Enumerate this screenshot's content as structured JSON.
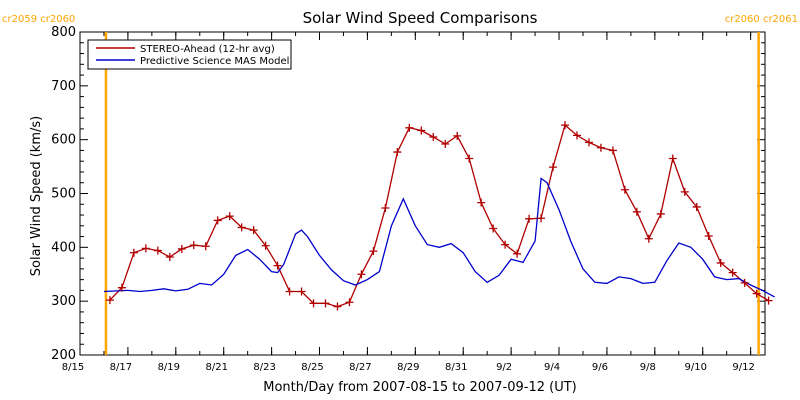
{
  "chart_data": {
    "type": "line",
    "title": "Solar Wind Speed Comparisons",
    "xlabel": "Month/Day from 2007-08-15 to 2007-09-12 (UT)",
    "ylabel": "Solar Wind Speed (km/s)",
    "xlim": [
      "2007-08-15",
      "2007-09-12"
    ],
    "ylim": [
      200,
      800
    ],
    "x_ticks": [
      {
        "date": "2007-08-15",
        "label": "8/15"
      },
      {
        "date": "2007-08-17",
        "label": "8/17"
      },
      {
        "date": "2007-08-19",
        "label": "8/19"
      },
      {
        "date": "2007-08-21",
        "label": "8/21"
      },
      {
        "date": "2007-08-23",
        "label": "8/23"
      },
      {
        "date": "2007-08-25",
        "label": "8/25"
      },
      {
        "date": "2007-08-27",
        "label": "8/27"
      },
      {
        "date": "2007-08-29",
        "label": "8/29"
      },
      {
        "date": "2007-08-31",
        "label": "8/31"
      },
      {
        "date": "2007-09-02",
        "label": "9/2"
      },
      {
        "date": "2007-09-04",
        "label": "9/4"
      },
      {
        "date": "2007-09-06",
        "label": "9/6"
      },
      {
        "date": "2007-09-08",
        "label": "9/8"
      },
      {
        "date": "2007-09-10",
        "label": "9/10"
      },
      {
        "date": "2007-09-12",
        "label": "9/12"
      }
    ],
    "y_ticks": [
      200,
      300,
      400,
      500,
      600,
      700,
      800
    ],
    "legend": {
      "position": "top-left",
      "entries": [
        "STEREO-Ahead (12-hr avg)",
        "Predictive Science MAS Model"
      ]
    },
    "markers": [
      {
        "date": "2007-08-16 02:00",
        "label": "cr2059 cr2060",
        "color": "#ffa500",
        "position": "left"
      },
      {
        "date": "2007-09-12 08:00",
        "label": "cr2060 cr2061",
        "color": "#ffa500",
        "position": "right"
      }
    ],
    "series": [
      {
        "name": "STEREO-Ahead (12-hr avg)",
        "color": "#b00000",
        "marker": "+",
        "points": [
          [
            "2007-08-16 06:00",
            302
          ],
          [
            "2007-08-16 18:00",
            325
          ],
          [
            "2007-08-17 06:00",
            390
          ],
          [
            "2007-08-17 18:00",
            398
          ],
          [
            "2007-08-18 06:00",
            394
          ],
          [
            "2007-08-18 18:00",
            382
          ],
          [
            "2007-08-19 06:00",
            397
          ],
          [
            "2007-08-19 18:00",
            404
          ],
          [
            "2007-08-20 06:00",
            402
          ],
          [
            "2007-08-20 18:00",
            450
          ],
          [
            "2007-08-21 06:00",
            458
          ],
          [
            "2007-08-21 18:00",
            437
          ],
          [
            "2007-08-22 06:00",
            432
          ],
          [
            "2007-08-22 18:00",
            403
          ],
          [
            "2007-08-23 06:00",
            366
          ],
          [
            "2007-08-23 18:00",
            318
          ],
          [
            "2007-08-24 06:00",
            318
          ],
          [
            "2007-08-24 18:00",
            296
          ],
          [
            "2007-08-25 06:00",
            296
          ],
          [
            "2007-08-25 18:00",
            290
          ],
          [
            "2007-08-26 06:00",
            298
          ],
          [
            "2007-08-26 18:00",
            350
          ],
          [
            "2007-08-27 06:00",
            393
          ],
          [
            "2007-08-27 18:00",
            473
          ],
          [
            "2007-08-28 06:00",
            577
          ],
          [
            "2007-08-28 18:00",
            622
          ],
          [
            "2007-08-29 06:00",
            617
          ],
          [
            "2007-08-29 18:00",
            605
          ],
          [
            "2007-08-30 06:00",
            592
          ],
          [
            "2007-08-30 18:00",
            607
          ],
          [
            "2007-08-31 06:00",
            565
          ],
          [
            "2007-08-31 18:00",
            483
          ],
          [
            "2007-09-01 06:00",
            435
          ],
          [
            "2007-09-01 18:00",
            405
          ],
          [
            "2007-09-02 06:00",
            388
          ],
          [
            "2007-09-02 18:00",
            453
          ],
          [
            "2007-09-03 06:00",
            454
          ],
          [
            "2007-09-03 18:00",
            549
          ],
          [
            "2007-09-04 06:00",
            627
          ],
          [
            "2007-09-04 18:00",
            608
          ],
          [
            "2007-09-05 06:00",
            595
          ],
          [
            "2007-09-05 18:00",
            585
          ],
          [
            "2007-09-06 06:00",
            580
          ],
          [
            "2007-09-06 18:00",
            507
          ],
          [
            "2007-09-07 06:00",
            466
          ],
          [
            "2007-09-07 18:00",
            416
          ],
          [
            "2007-09-08 06:00",
            462
          ],
          [
            "2007-09-08 18:00",
            565
          ],
          [
            "2007-09-09 06:00",
            503
          ],
          [
            "2007-09-09 18:00",
            475
          ],
          [
            "2007-09-10 06:00",
            421
          ],
          [
            "2007-09-10 18:00",
            371
          ],
          [
            "2007-09-11 06:00",
            353
          ],
          [
            "2007-09-11 18:00",
            334
          ],
          [
            "2007-09-12 06:00",
            314
          ],
          [
            "2007-09-12 18:00",
            301
          ]
        ]
      },
      {
        "name": "Predictive Science MAS Model",
        "color": "#0000cc",
        "marker": "none",
        "points": [
          [
            "2007-08-16 00:00",
            318
          ],
          [
            "2007-08-17 00:00",
            320
          ],
          [
            "2007-08-17 12:00",
            318
          ],
          [
            "2007-08-18 00:00",
            320
          ],
          [
            "2007-08-18 12:00",
            323
          ],
          [
            "2007-08-19 00:00",
            319
          ],
          [
            "2007-08-19 12:00",
            322
          ],
          [
            "2007-08-20 00:00",
            333
          ],
          [
            "2007-08-20 12:00",
            330
          ],
          [
            "2007-08-21 00:00",
            350
          ],
          [
            "2007-08-21 12:00",
            385
          ],
          [
            "2007-08-22 00:00",
            396
          ],
          [
            "2007-08-22 12:00",
            378
          ],
          [
            "2007-08-23 00:00",
            355
          ],
          [
            "2007-08-23 06:00",
            353
          ],
          [
            "2007-08-23 12:00",
            368
          ],
          [
            "2007-08-24 00:00",
            425
          ],
          [
            "2007-08-24 06:00",
            432
          ],
          [
            "2007-08-24 12:00",
            420
          ],
          [
            "2007-08-25 00:00",
            385
          ],
          [
            "2007-08-25 12:00",
            358
          ],
          [
            "2007-08-26 00:00",
            338
          ],
          [
            "2007-08-26 12:00",
            330
          ],
          [
            "2007-08-27 00:00",
            340
          ],
          [
            "2007-08-27 12:00",
            355
          ],
          [
            "2007-08-28 00:00",
            440
          ],
          [
            "2007-08-28 12:00",
            490
          ],
          [
            "2007-08-29 00:00",
            440
          ],
          [
            "2007-08-29 12:00",
            405
          ],
          [
            "2007-08-30 00:00",
            400
          ],
          [
            "2007-08-30 12:00",
            407
          ],
          [
            "2007-08-31 00:00",
            390
          ],
          [
            "2007-08-31 12:00",
            355
          ],
          [
            "2007-09-01 00:00",
            335
          ],
          [
            "2007-09-01 12:00",
            348
          ],
          [
            "2007-09-02 00:00",
            378
          ],
          [
            "2007-09-02 12:00",
            372
          ],
          [
            "2007-09-03 00:00",
            412
          ],
          [
            "2007-09-03 06:00",
            528
          ],
          [
            "2007-09-03 12:00",
            520
          ],
          [
            "2007-09-04 00:00",
            470
          ],
          [
            "2007-09-04 12:00",
            410
          ],
          [
            "2007-09-05 00:00",
            360
          ],
          [
            "2007-09-05 12:00",
            335
          ],
          [
            "2007-09-06 00:00",
            333
          ],
          [
            "2007-09-06 12:00",
            345
          ],
          [
            "2007-09-07 00:00",
            342
          ],
          [
            "2007-09-07 12:00",
            333
          ],
          [
            "2007-09-08 00:00",
            335
          ],
          [
            "2007-09-08 12:00",
            375
          ],
          [
            "2007-09-09 00:00",
            408
          ],
          [
            "2007-09-09 12:00",
            400
          ],
          [
            "2007-09-10 00:00",
            378
          ],
          [
            "2007-09-10 12:00",
            345
          ],
          [
            "2007-09-11 00:00",
            340
          ],
          [
            "2007-09-11 12:00",
            342
          ],
          [
            "2007-09-12 00:00",
            330
          ],
          [
            "2007-09-12 12:00",
            320
          ],
          [
            "2007-09-13 00:00",
            308
          ]
        ]
      }
    ]
  }
}
